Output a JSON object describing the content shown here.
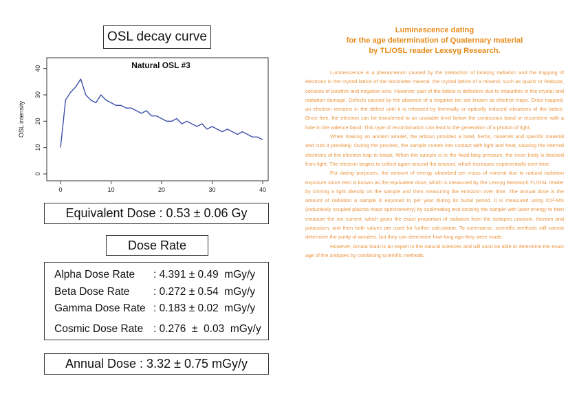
{
  "osl_title": "OSL decay curve",
  "chart_data": {
    "type": "line",
    "title": "Natural OSL #3",
    "xlabel": "",
    "ylabel": "OSL intensity",
    "xlim": [
      0,
      40
    ],
    "ylim": [
      0,
      42
    ],
    "xticks": [
      0,
      10,
      20,
      30,
      40
    ],
    "yticks": [
      0,
      10,
      20,
      30,
      40
    ],
    "x": [
      0,
      1,
      2,
      3,
      4,
      5,
      6,
      7,
      8,
      9,
      10,
      11,
      12,
      13,
      14,
      15,
      16,
      17,
      18,
      19,
      20,
      21,
      22,
      23,
      24,
      25,
      26,
      27,
      28,
      29,
      30,
      31,
      32,
      33,
      34,
      35,
      36,
      37,
      38,
      39,
      40
    ],
    "series": [
      {
        "values": [
          10,
          28,
          31,
          33,
          36,
          30,
          28,
          27,
          30,
          28,
          27,
          26,
          26,
          25,
          25,
          24,
          23,
          24,
          22,
          22,
          21,
          20,
          20,
          21,
          19,
          20,
          19,
          18,
          19,
          17,
          18,
          17,
          16,
          17,
          16,
          15,
          16,
          15,
          14,
          14,
          13
        ]
      }
    ],
    "color": "#3b4ea8"
  },
  "equivalent_dose": "Equivalent Dose : 0.53 ± 0.06 Gy",
  "dose_rate_title": "Dose Rate",
  "dose_rates": [
    {
      "name": "Alpha Dose Rate",
      "value": ": 4.391 ± 0.49  mGy/y"
    },
    {
      "name": "Beta Dose Rate",
      "value": ": 0.272 ± 0.54  mGy/y"
    },
    {
      "name": "Gamma Dose Rate",
      "value": ": 0.183 ± 0.02  mGy/y"
    },
    {
      "name": "Cosmic Dose Rate",
      "value": ": 0.276  ±  0.03  mGy/y"
    }
  ],
  "annual_dose": "Annual Dose : 3.32 ± 0.75 mGy/y",
  "article": {
    "heading": [
      "Luminescence dating",
      "for the age determination of Quaternary material",
      "by TL/OSL reader Lexsyg Research."
    ],
    "paragraphs": [
      "Luminescence is a phenomenon caused by the interaction of ionising radiation and the trapping of electrons in the crystal lattice of the dosimeter mineral. the crystal lattice of a mineral, such as quartz or feldspar, consists of positive and negative ions. However, part of the lattice is defective due to impurities in the crystal and radiation damage. Defects caused by the absence of a negative ion are known as electron traps. Once trapped, an electron remains in the defect until it is released by thermally or optically induced vibrations of the lattice. Once free, the electron can be transferred to an unstable level below the conduction band or recombine with a hole in the valence band. This type of recombination can lead to the generation of a photon of light.",
      "When making an ancient amulet, the artisan provides a bowl, herbs, minerals and specific material and cuts it precisely. During the process, the sample comes into contact with light and heat, causing the internal electrons of the electron trap to break. When the sample is in the fixed blog pressure, the inner body is blocked from light. The electron begins to collect again around the amount, which increases exponentially over time.",
      "For dating purposes, the amount of energy absorbed per mass of mineral due to natural radiation exposure since zero is known as the equivalent dose, which is measured by the Lexsyg Research TL/OSL reader by shining a light directly on the sample and then measuring the emission over time. The annual dose is the amount of radiation a sample is exposed to per year during its burial period. It is measured using ICP-MS (inductively coupled plasma mass spectrometry) by sublimating and ionizing the sample with laser energy to then measure the ion current, which gives the exact proportion of radiation from the isotopes uranium, thorium and potassium, and then both values are used for further calculation. To summarise, scientific methods still cannot determine the purity of amulets, but they can determine how long ago they were made.",
      "However, Amata Siam is an expert in the natural sciences and will soon be able to determine the exact age of the antiques by combining scientific methods."
    ]
  }
}
